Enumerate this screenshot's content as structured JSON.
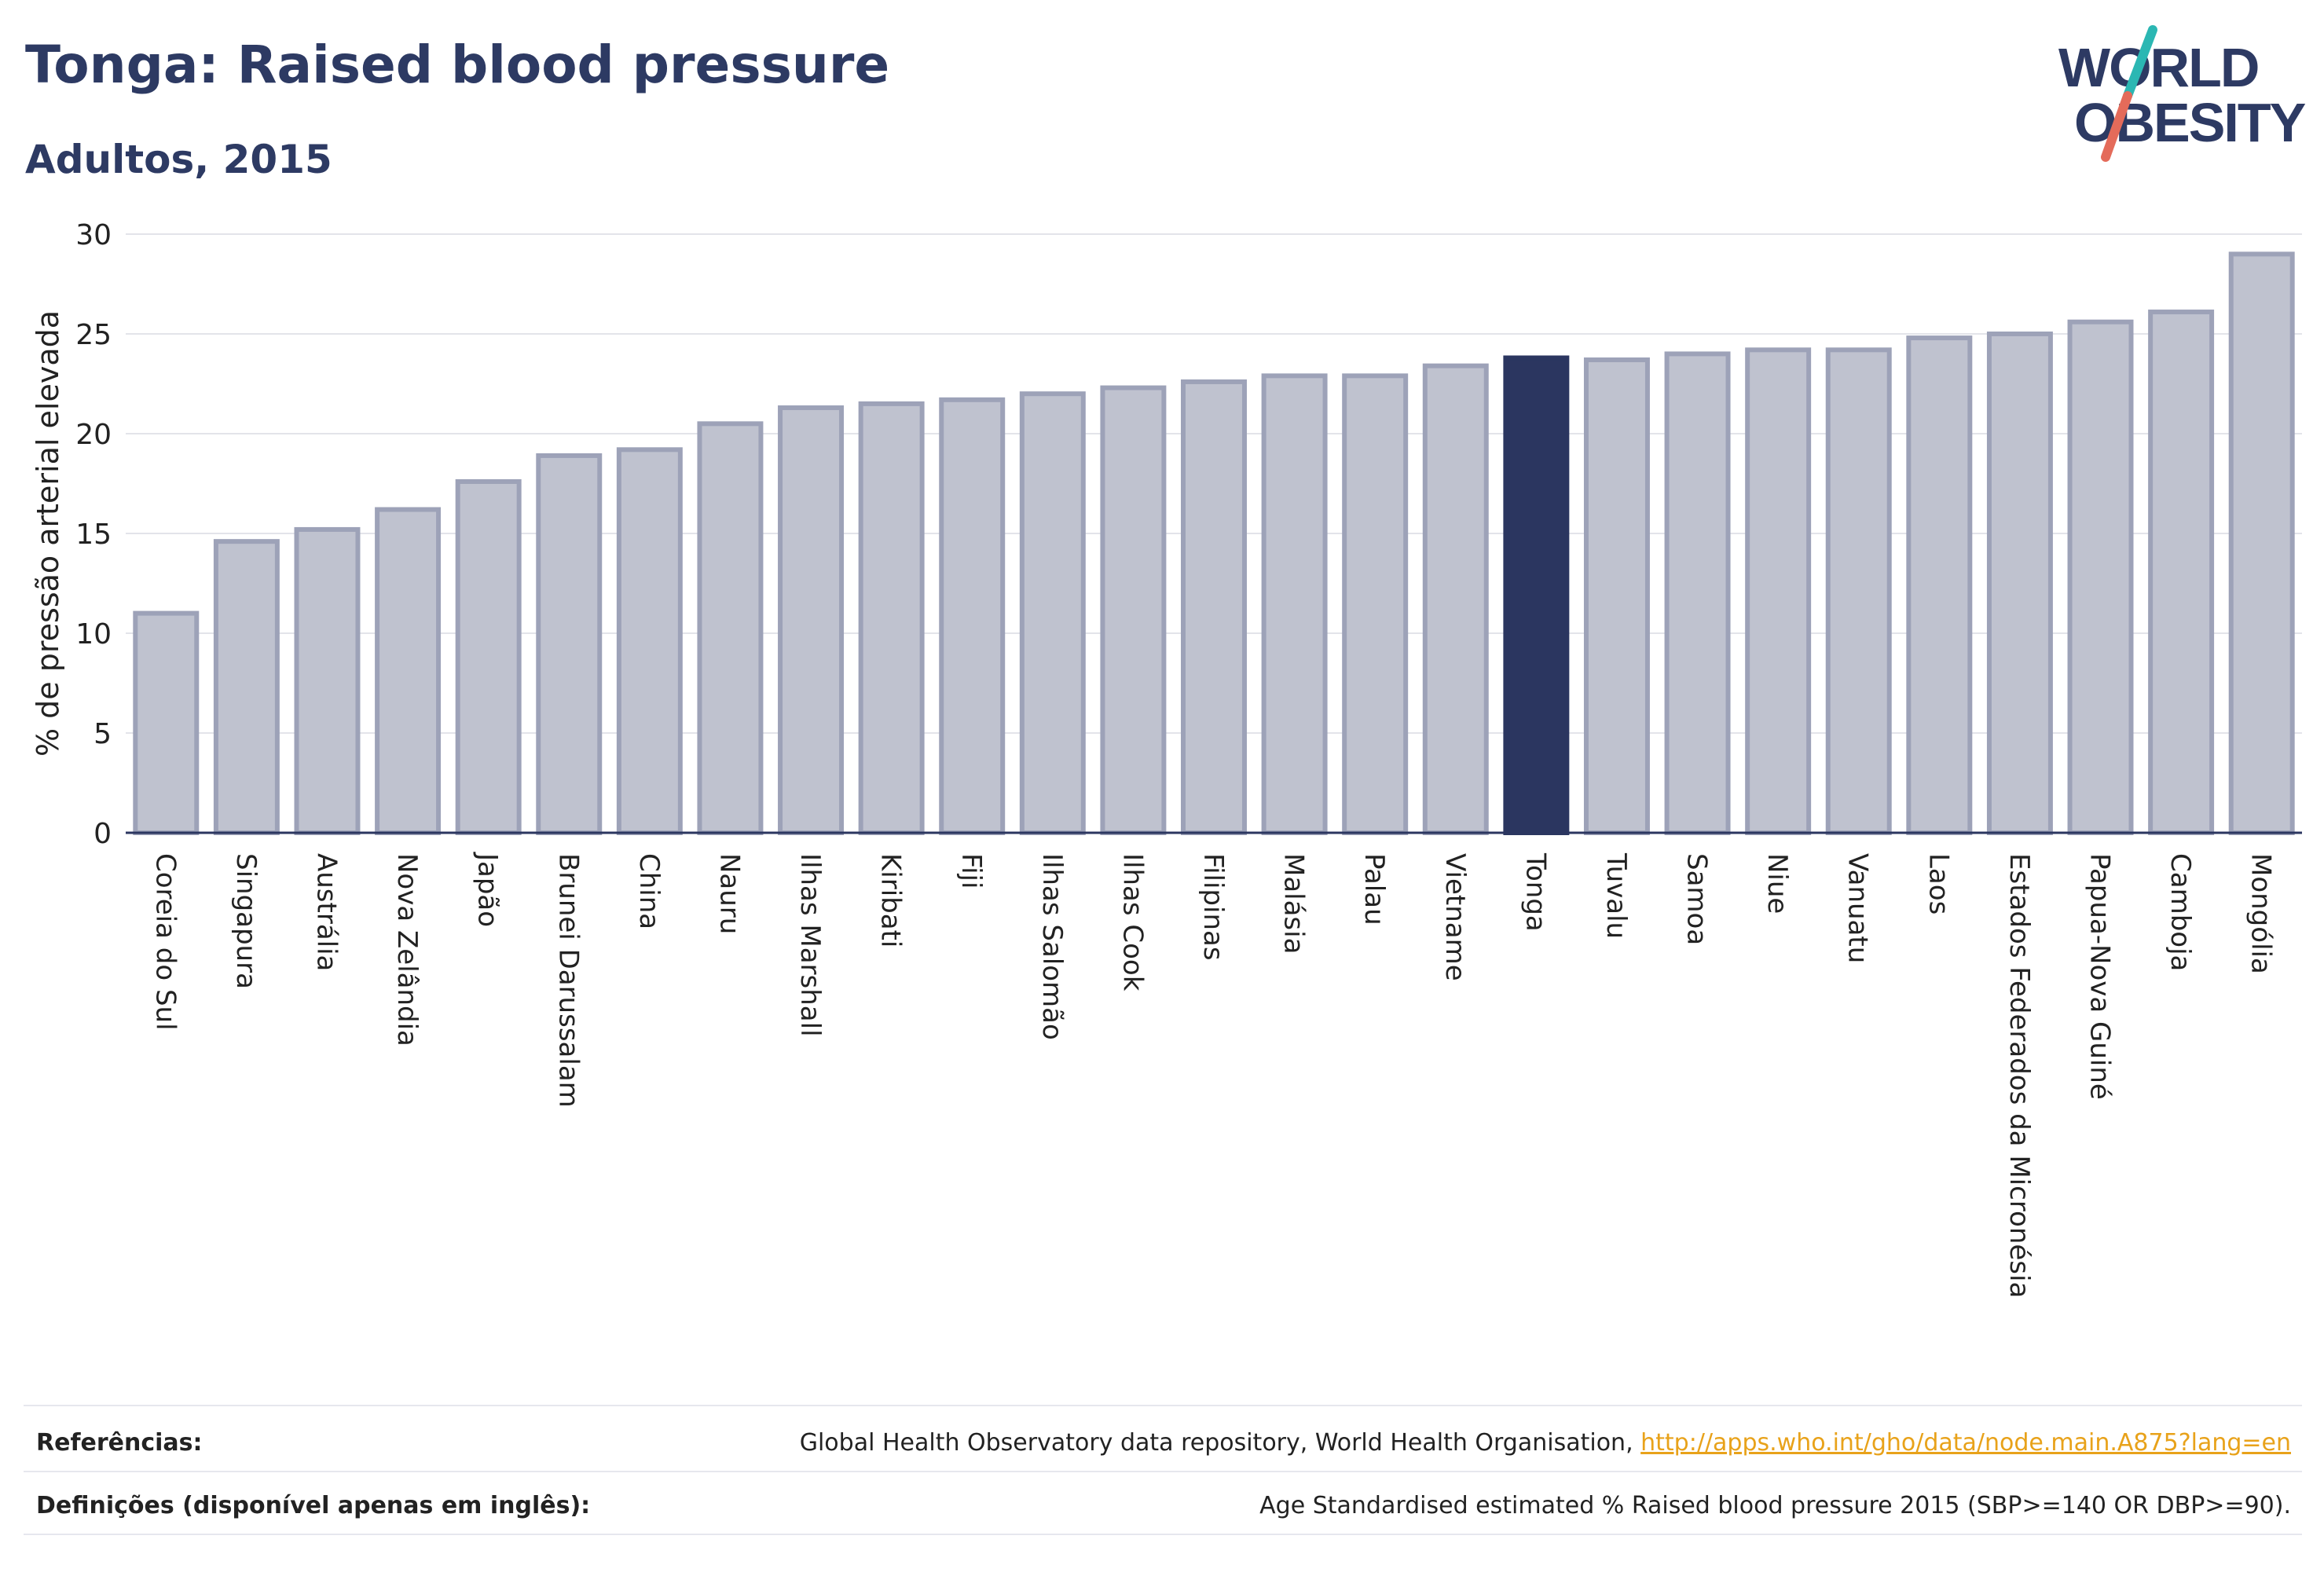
{
  "header": {
    "title": "Tonga: Raised blood pressure",
    "subtitle": "Adultos, 2015"
  },
  "logo": {
    "line1": "WORLD",
    "line2": "OBESITY"
  },
  "colors": {
    "bar_fill": "#bfc2cf",
    "bar_stroke": "#9da2b8",
    "highlight": "#2b3660",
    "grid": "#e3e4ea",
    "logo_navy": "#2d3a63",
    "logo_teal": "#2bb7b3",
    "logo_red": "#e46b5a"
  },
  "chart_data": {
    "type": "bar",
    "ylabel": "% de pressão arterial elevada",
    "ylim": [
      0,
      30
    ],
    "yticks": [
      0,
      5,
      10,
      15,
      20,
      25,
      30
    ],
    "grid": true,
    "highlight": "Tonga",
    "categories": [
      "Coreia do Sul",
      "Singapura",
      "Austrália",
      "Nova Zelândia",
      "Japão",
      "Brunei Darussalam",
      "China",
      "Nauru",
      "Ilhas Marshall",
      "Kiribati",
      "Fiji",
      "Ilhas Salomão",
      "Ilhas Cook",
      "Filipinas",
      "Malásia",
      "Palau",
      "Vietname",
      "Tonga",
      "Tuvalu",
      "Samoa",
      "Niue",
      "Vanuatu",
      "Laos",
      "Estados Federados da Micronésia",
      "Papua-Nova Guiné",
      "Camboja",
      "Mongólia"
    ],
    "values": [
      11.0,
      14.6,
      15.2,
      16.2,
      17.6,
      18.9,
      19.2,
      20.5,
      21.3,
      21.5,
      21.7,
      22.0,
      22.3,
      22.6,
      22.9,
      22.9,
      23.4,
      23.8,
      23.7,
      24.0,
      24.2,
      24.2,
      24.8,
      25.0,
      25.6,
      26.1,
      29.0
    ]
  },
  "footer": {
    "references_label": "Referências:",
    "references_text": "Global Health Observatory data repository, World Health Organisation, ",
    "references_link": "http://apps.who.int/gho/data/node.main.A875?lang=en",
    "definitions_label": "Definições (disponível apenas em inglês):",
    "definitions_text": "Age Standardised estimated % Raised blood pressure 2015 (SBP>=140 OR DBP>=90)."
  }
}
